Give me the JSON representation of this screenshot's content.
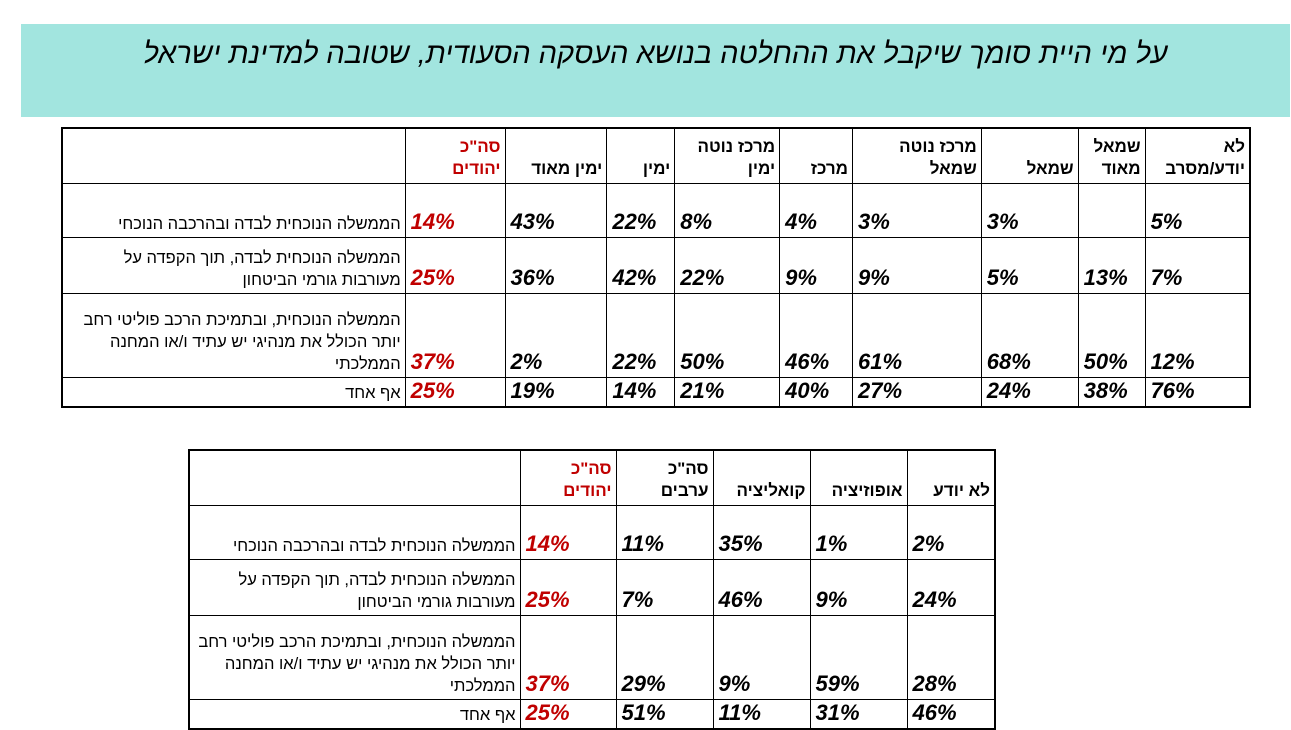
{
  "title": "על מי היית סומך שיקבל את ההחלטה בנושא העסקה הסעודית, שטובה למדינת ישראל",
  "colors": {
    "banner": "#a2e5df",
    "total_text": "#c00000",
    "text": "#000000"
  },
  "chart_data": [
    {
      "type": "table",
      "columns": [
        "לא יודע/מסרב",
        "שמאל מאוד",
        "שמאל",
        "מרכז נוטה שמאל",
        "מרכז",
        "מרכז נוטה ימין",
        "ימין",
        "ימין מאוד",
        "סה\"כ יהודים"
      ],
      "rows": [
        {
          "label": "הממשלה הנוכחית לבדה ובהרכבה הנוכחי",
          "values": [
            "5%",
            "",
            "3%",
            "3%",
            "4%",
            "8%",
            "22%",
            "43%",
            "14%"
          ]
        },
        {
          "label": "הממשלה הנוכחית לבדה, תוך הקפדה על מעורבות גורמי הביטחון",
          "values": [
            "7%",
            "13%",
            "5%",
            "9%",
            "9%",
            "22%",
            "42%",
            "36%",
            "25%"
          ]
        },
        {
          "label": "הממשלה הנוכחית, ובתמיכת הרכב פוליטי רחב יותר הכולל את מנהיגי יש עתיד ו/או המחנה הממלכתי",
          "values": [
            "12%",
            "50%",
            "68%",
            "61%",
            "46%",
            "50%",
            "22%",
            "2%",
            "37%"
          ]
        },
        {
          "label": "אף אחד",
          "values": [
            "76%",
            "38%",
            "24%",
            "27%",
            "40%",
            "21%",
            "14%",
            "19%",
            "25%"
          ]
        }
      ]
    },
    {
      "type": "table",
      "columns": [
        "לא יודע",
        "אופוזיציה",
        "קואליציה",
        "סה\"כ ערבים",
        "סה\"כ יהודים"
      ],
      "rows": [
        {
          "label": "הממשלה הנוכחית לבדה ובהרכבה הנוכחי",
          "values": [
            "2%",
            "1%",
            "35%",
            "11%",
            "14%"
          ]
        },
        {
          "label": "הממשלה הנוכחית לבדה, תוך הקפדה על מעורבות גורמי הביטחון",
          "values": [
            "24%",
            "9%",
            "46%",
            "7%",
            "25%"
          ]
        },
        {
          "label": "הממשלה הנוכחית, ובתמיכת הרכב פוליטי רחב יותר הכולל את מנהיגי יש עתיד ו/או המחנה הממלכתי",
          "values": [
            "28%",
            "59%",
            "9%",
            "29%",
            "37%"
          ]
        },
        {
          "label": "אף אחד",
          "values": [
            "46%",
            "31%",
            "11%",
            "51%",
            "25%"
          ]
        }
      ]
    }
  ]
}
